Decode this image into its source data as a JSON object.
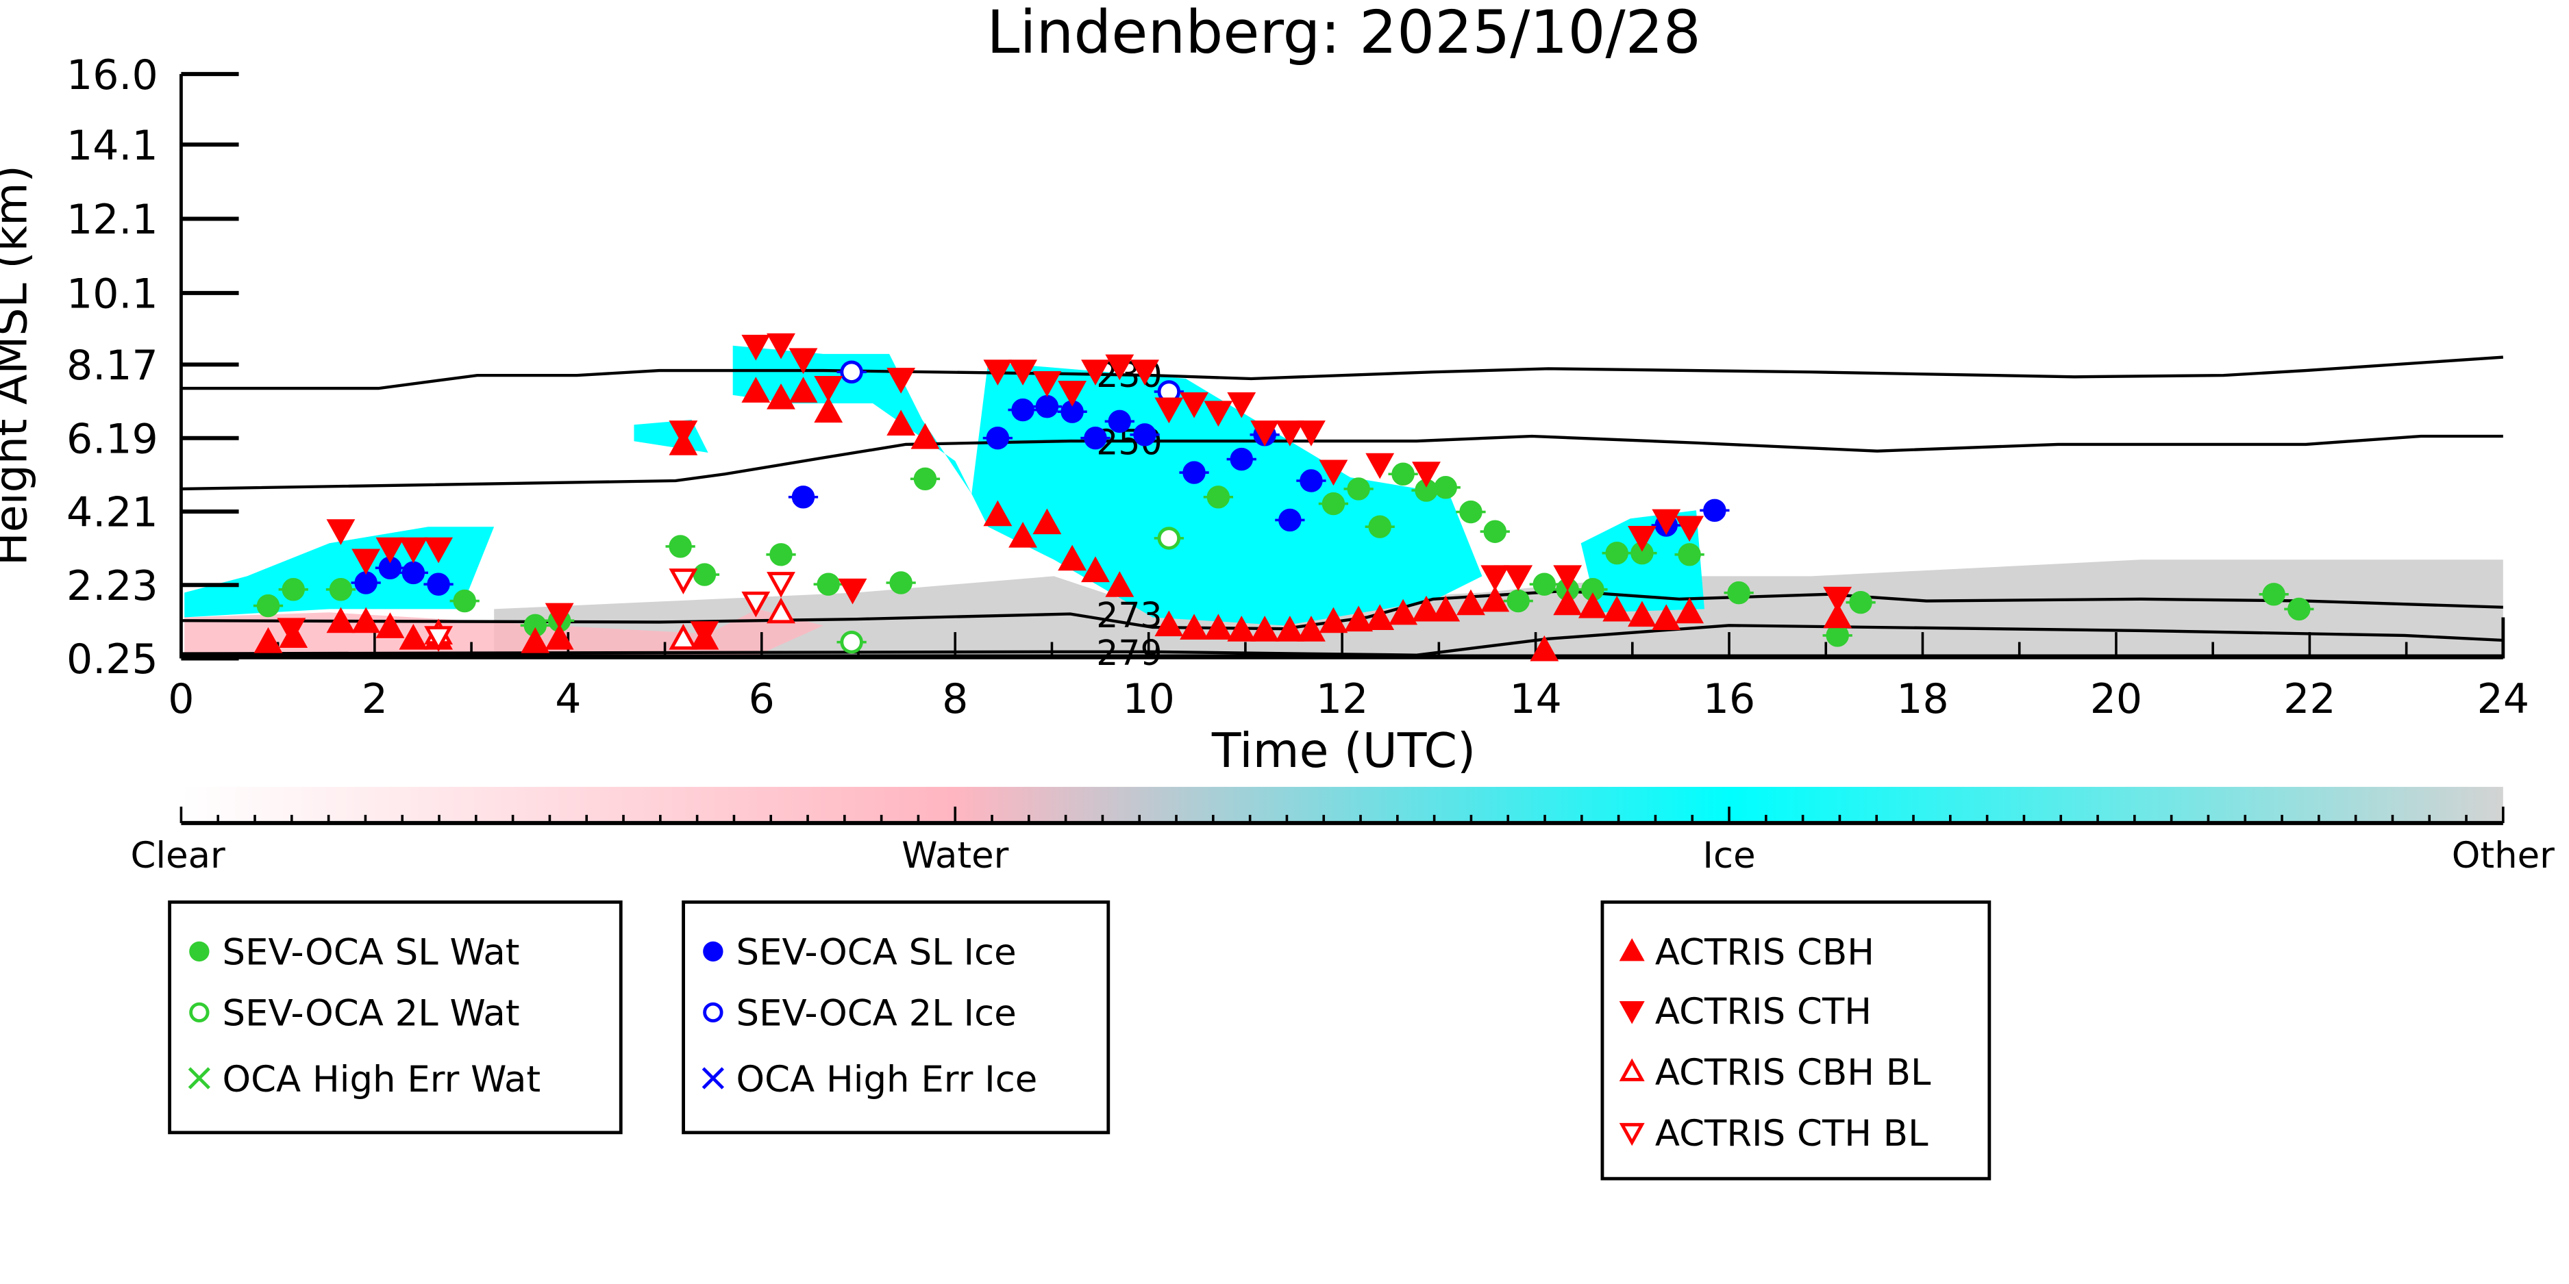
{
  "chart_data": {
    "type": "scatter",
    "title": "Lindenberg: 2025/10/28",
    "xlabel": "Time (UTC)",
    "ylabel": "Height AMSL (km)",
    "xlim": [
      0,
      24
    ],
    "ylim": [
      0.25,
      16.0
    ],
    "xticks": [
      "0",
      "2",
      "4",
      "6",
      "8",
      "10",
      "12",
      "14",
      "16",
      "18",
      "20",
      "22",
      "24"
    ],
    "yticks": [
      "0.25",
      "2.23",
      "4.21",
      "6.19",
      "8.17",
      "10.1",
      "12.1",
      "14.1",
      "16.0"
    ],
    "ytick_values": [
      0.25,
      2.23,
      4.21,
      6.19,
      8.17,
      10.1,
      12.1,
      14.1,
      16.0
    ],
    "colorbar": {
      "labels": [
        "Clear",
        "Water",
        "Ice",
        "Other"
      ],
      "colors": [
        "#ffffff",
        "#ffb6c1",
        "#00ffff",
        "#d3d3d3"
      ]
    },
    "contours": [
      {
        "label": "230",
        "points": [
          [
            0,
            7.53
          ],
          [
            2.04,
            7.53
          ],
          [
            3.06,
            7.88
          ],
          [
            4.09,
            7.88
          ],
          [
            4.94,
            8.01
          ],
          [
            6.64,
            8.01
          ],
          [
            9.19,
            7.92
          ],
          [
            10.04,
            7.88
          ],
          [
            11.06,
            7.79
          ],
          [
            12.94,
            7.97
          ],
          [
            14.13,
            8.06
          ],
          [
            16.85,
            7.97
          ],
          [
            19.57,
            7.84
          ],
          [
            21.11,
            7.88
          ],
          [
            21.96,
            8.01
          ],
          [
            24,
            8.37
          ]
        ]
      },
      {
        "label": "250",
        "points": [
          [
            0,
            4.82
          ],
          [
            5.11,
            5.04
          ],
          [
            5.62,
            5.22
          ],
          [
            6.64,
            5.66
          ],
          [
            7.49,
            6.02
          ],
          [
            9.19,
            6.11
          ],
          [
            10.04,
            6.11
          ],
          [
            12.77,
            6.11
          ],
          [
            13.96,
            6.24
          ],
          [
            15.66,
            6.06
          ],
          [
            17.53,
            5.84
          ],
          [
            19.4,
            6.02
          ],
          [
            21.96,
            6.02
          ],
          [
            23.15,
            6.24
          ],
          [
            24,
            6.24
          ]
        ]
      },
      {
        "label": "273",
        "points": [
          [
            0,
            1.27
          ],
          [
            4.94,
            1.23
          ],
          [
            6.98,
            1.31
          ],
          [
            9.19,
            1.45
          ],
          [
            10.04,
            1.09
          ],
          [
            11.4,
            1.05
          ],
          [
            12.26,
            1.36
          ],
          [
            12.94,
            1.85
          ],
          [
            14.3,
            2.07
          ],
          [
            15.49,
            1.85
          ],
          [
            17.02,
            1.98
          ],
          [
            18.04,
            1.8
          ],
          [
            20.26,
            1.85
          ],
          [
            21.96,
            1.8
          ],
          [
            24,
            1.63
          ]
        ]
      },
      {
        "label": "279",
        "points": [
          [
            0,
            0.38
          ],
          [
            9.02,
            0.43
          ],
          [
            10.04,
            0.43
          ],
          [
            12.77,
            0.34
          ],
          [
            14.13,
            0.78
          ],
          [
            16.0,
            1.14
          ],
          [
            20.26,
            1.0
          ],
          [
            22.98,
            0.87
          ],
          [
            24,
            0.74
          ]
        ]
      }
    ],
    "series": [
      {
        "name": "SEV-OCA SL Wat",
        "color": "#32cd32",
        "marker": "circle-filled",
        "points": [
          [
            0.9,
            1.67
          ],
          [
            1.16,
            2.11
          ],
          [
            1.65,
            2.11
          ],
          [
            2.93,
            1.8
          ],
          [
            3.66,
            1.14
          ],
          [
            3.91,
            1.27
          ],
          [
            5.16,
            3.27
          ],
          [
            5.41,
            2.51
          ],
          [
            6.2,
            3.05
          ],
          [
            6.69,
            2.25
          ],
          [
            7.44,
            2.29
          ],
          [
            7.69,
            5.09
          ],
          [
            10.72,
            4.6
          ],
          [
            11.91,
            4.42
          ],
          [
            12.17,
            4.82
          ],
          [
            12.39,
            3.8
          ],
          [
            12.63,
            5.22
          ],
          [
            12.87,
            4.78
          ],
          [
            13.07,
            4.86
          ],
          [
            13.33,
            4.2
          ],
          [
            13.58,
            3.67
          ],
          [
            13.82,
            1.8
          ],
          [
            14.09,
            2.25
          ],
          [
            14.33,
            2.11
          ],
          [
            14.59,
            2.11
          ],
          [
            14.84,
            3.09
          ],
          [
            15.1,
            3.09
          ],
          [
            15.59,
            3.05
          ],
          [
            16.1,
            2.02
          ],
          [
            17.12,
            0.87
          ],
          [
            17.36,
            1.76
          ],
          [
            21.63,
            1.98
          ],
          [
            21.89,
            1.58
          ]
        ]
      },
      {
        "name": "SEV-OCA 2L Wat",
        "color": "#32cd32",
        "marker": "circle-open",
        "points": [
          [
            6.93,
            0.69
          ],
          [
            10.21,
            3.49
          ]
        ]
      },
      {
        "name": "OCA High Err Wat",
        "color": "#32cd32",
        "marker": "x",
        "points": []
      },
      {
        "name": "SEV-OCA SL Ice",
        "color": "#0000ff",
        "marker": "circle-filled",
        "points": [
          [
            1.91,
            2.29
          ],
          [
            2.16,
            2.69
          ],
          [
            2.4,
            2.56
          ],
          [
            2.66,
            2.25
          ],
          [
            6.43,
            4.6
          ],
          [
            8.44,
            6.19
          ],
          [
            8.7,
            6.95
          ],
          [
            8.95,
            7.04
          ],
          [
            9.21,
            6.9
          ],
          [
            9.45,
            6.19
          ],
          [
            9.7,
            6.64
          ],
          [
            9.96,
            6.28
          ],
          [
            10.47,
            5.26
          ],
          [
            10.96,
            5.62
          ],
          [
            11.2,
            6.28
          ],
          [
            11.46,
            3.98
          ],
          [
            11.68,
            5.04
          ],
          [
            15.35,
            3.84
          ],
          [
            15.85,
            4.24
          ]
        ]
      },
      {
        "name": "SEV-OCA 2L Ice",
        "color": "#0000ff",
        "marker": "circle-open",
        "points": [
          [
            6.93,
            7.97
          ],
          [
            10.21,
            7.44
          ]
        ]
      },
      {
        "name": "OCA High Err Ice",
        "color": "#0000ff",
        "marker": "x",
        "points": []
      },
      {
        "name": "ACTRIS CBH",
        "color": "#ff0000",
        "marker": "triangle-up-filled",
        "points": [
          [
            0.9,
            0.69
          ],
          [
            1.16,
            0.83
          ],
          [
            1.65,
            1.23
          ],
          [
            1.91,
            1.23
          ],
          [
            2.16,
            1.09
          ],
          [
            2.4,
            0.78
          ],
          [
            2.66,
            0.78
          ],
          [
            3.66,
            0.69
          ],
          [
            3.91,
            0.78
          ],
          [
            5.41,
            0.78
          ],
          [
            5.19,
            6.02
          ],
          [
            5.94,
            7.44
          ],
          [
            6.2,
            7.26
          ],
          [
            6.43,
            7.44
          ],
          [
            6.69,
            6.9
          ],
          [
            7.44,
            6.55
          ],
          [
            7.69,
            6.19
          ],
          [
            8.44,
            4.11
          ],
          [
            8.7,
            3.53
          ],
          [
            8.95,
            3.89
          ],
          [
            9.21,
            2.91
          ],
          [
            9.45,
            2.6
          ],
          [
            9.7,
            2.2
          ],
          [
            10.21,
            1.14
          ],
          [
            10.47,
            1.05
          ],
          [
            10.72,
            1.05
          ],
          [
            10.96,
            1.0
          ],
          [
            11.2,
            1.0
          ],
          [
            11.46,
            1.0
          ],
          [
            11.68,
            1.0
          ],
          [
            11.91,
            1.23
          ],
          [
            12.17,
            1.27
          ],
          [
            12.39,
            1.31
          ],
          [
            12.63,
            1.45
          ],
          [
            12.87,
            1.54
          ],
          [
            13.07,
            1.54
          ],
          [
            13.33,
            1.71
          ],
          [
            13.58,
            1.8
          ],
          [
            14.09,
            0.47
          ],
          [
            14.33,
            1.71
          ],
          [
            14.59,
            1.63
          ],
          [
            14.84,
            1.54
          ],
          [
            15.1,
            1.4
          ],
          [
            15.35,
            1.31
          ],
          [
            15.59,
            1.49
          ],
          [
            17.12,
            1.36
          ]
        ]
      },
      {
        "name": "ACTRIS CTH",
        "color": "#ff0000",
        "marker": "triangle-down-filled",
        "points": [
          [
            1.14,
            1.05
          ],
          [
            1.65,
            3.71
          ],
          [
            1.91,
            2.91
          ],
          [
            2.16,
            3.22
          ],
          [
            2.4,
            3.22
          ],
          [
            2.66,
            3.22
          ],
          [
            3.91,
            1.45
          ],
          [
            5.19,
            6.37
          ],
          [
            5.41,
            0.96
          ],
          [
            5.94,
            8.68
          ],
          [
            6.2,
            8.72
          ],
          [
            6.43,
            8.32
          ],
          [
            6.69,
            7.57
          ],
          [
            6.94,
            2.11
          ],
          [
            7.44,
            7.79
          ],
          [
            8.44,
            8.01
          ],
          [
            8.7,
            8.01
          ],
          [
            8.95,
            7.7
          ],
          [
            9.21,
            7.44
          ],
          [
            9.45,
            8.01
          ],
          [
            9.7,
            8.15
          ],
          [
            9.96,
            8.01
          ],
          [
            10.21,
            6.99
          ],
          [
            10.47,
            7.13
          ],
          [
            10.72,
            6.9
          ],
          [
            10.96,
            7.13
          ],
          [
            11.2,
            6.37
          ],
          [
            11.46,
            6.37
          ],
          [
            11.68,
            6.37
          ],
          [
            11.91,
            5.31
          ],
          [
            12.39,
            5.49
          ],
          [
            12.87,
            5.26
          ],
          [
            13.58,
            2.47
          ],
          [
            13.82,
            2.47
          ],
          [
            14.33,
            2.47
          ],
          [
            15.1,
            3.53
          ],
          [
            15.35,
            3.98
          ],
          [
            15.59,
            3.8
          ],
          [
            17.12,
            1.89
          ]
        ]
      },
      {
        "name": "ACTRIS CBH BL",
        "color": "#ff0000",
        "marker": "triangle-up-open",
        "points": [
          [
            2.66,
            0.92
          ],
          [
            5.19,
            0.78
          ],
          [
            6.2,
            1.49
          ]
        ]
      },
      {
        "name": "ACTRIS CTH BL",
        "color": "#ff0000",
        "marker": "triangle-down-open",
        "points": [
          [
            2.66,
            0.83
          ],
          [
            5.19,
            2.38
          ],
          [
            5.94,
            1.76
          ],
          [
            6.2,
            2.29
          ]
        ]
      }
    ],
    "legend_groups": [
      [
        0,
        1,
        2
      ],
      [
        3,
        4,
        5
      ],
      [
        6,
        7,
        8,
        9
      ]
    ]
  }
}
